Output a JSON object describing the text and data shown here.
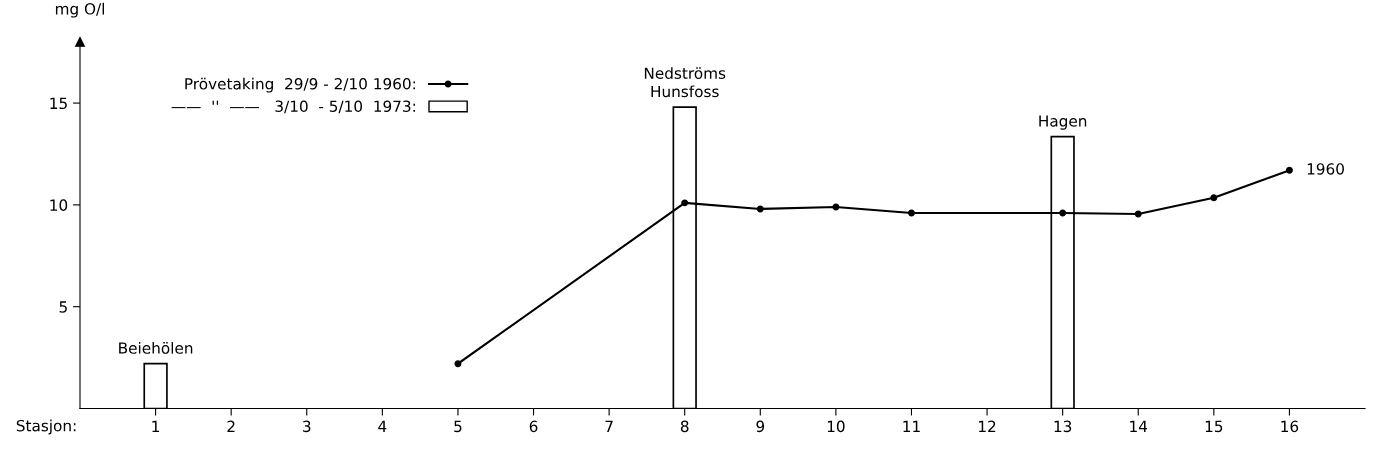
{
  "chart_data": {
    "type": "line",
    "xlabel": "Stasjon:",
    "ylabel": "mg O/l",
    "xlim": [
      0,
      17
    ],
    "ylim": [
      0,
      18
    ],
    "xticks": [
      1,
      2,
      3,
      4,
      5,
      6,
      7,
      8,
      9,
      10,
      11,
      12,
      13,
      14,
      15,
      16
    ],
    "yticks": [
      5,
      10,
      15
    ],
    "series": [
      {
        "name": "Prövetaking  29/9 - 2/10 1960:",
        "color": "#000000",
        "marker": "circle",
        "x": [
          5,
          8,
          9,
          10,
          11,
          13,
          14,
          15,
          16
        ],
        "values": [
          2.2,
          10.1,
          9.8,
          9.9,
          9.6,
          9.6,
          9.55,
          10.35,
          11.7
        ]
      },
      {
        "name": "——  ''  ——   3/10  - 5/10  1973:",
        "type": "bar",
        "color": "#ffffff",
        "x": [
          1,
          8,
          13
        ],
        "values": [
          2.2,
          14.8,
          13.35
        ]
      }
    ],
    "annotations": [
      {
        "text": "Beiehölen",
        "x": 1,
        "y": 2.2
      },
      {
        "text": "Nedströms\nHunsfoss",
        "x": 8,
        "y": 14.8
      },
      {
        "text": "Hagen",
        "x": 13,
        "y": 13.35
      },
      {
        "text": "1960",
        "x": 16,
        "y": 11.7
      }
    ],
    "legend": "top left",
    "grid": false
  }
}
